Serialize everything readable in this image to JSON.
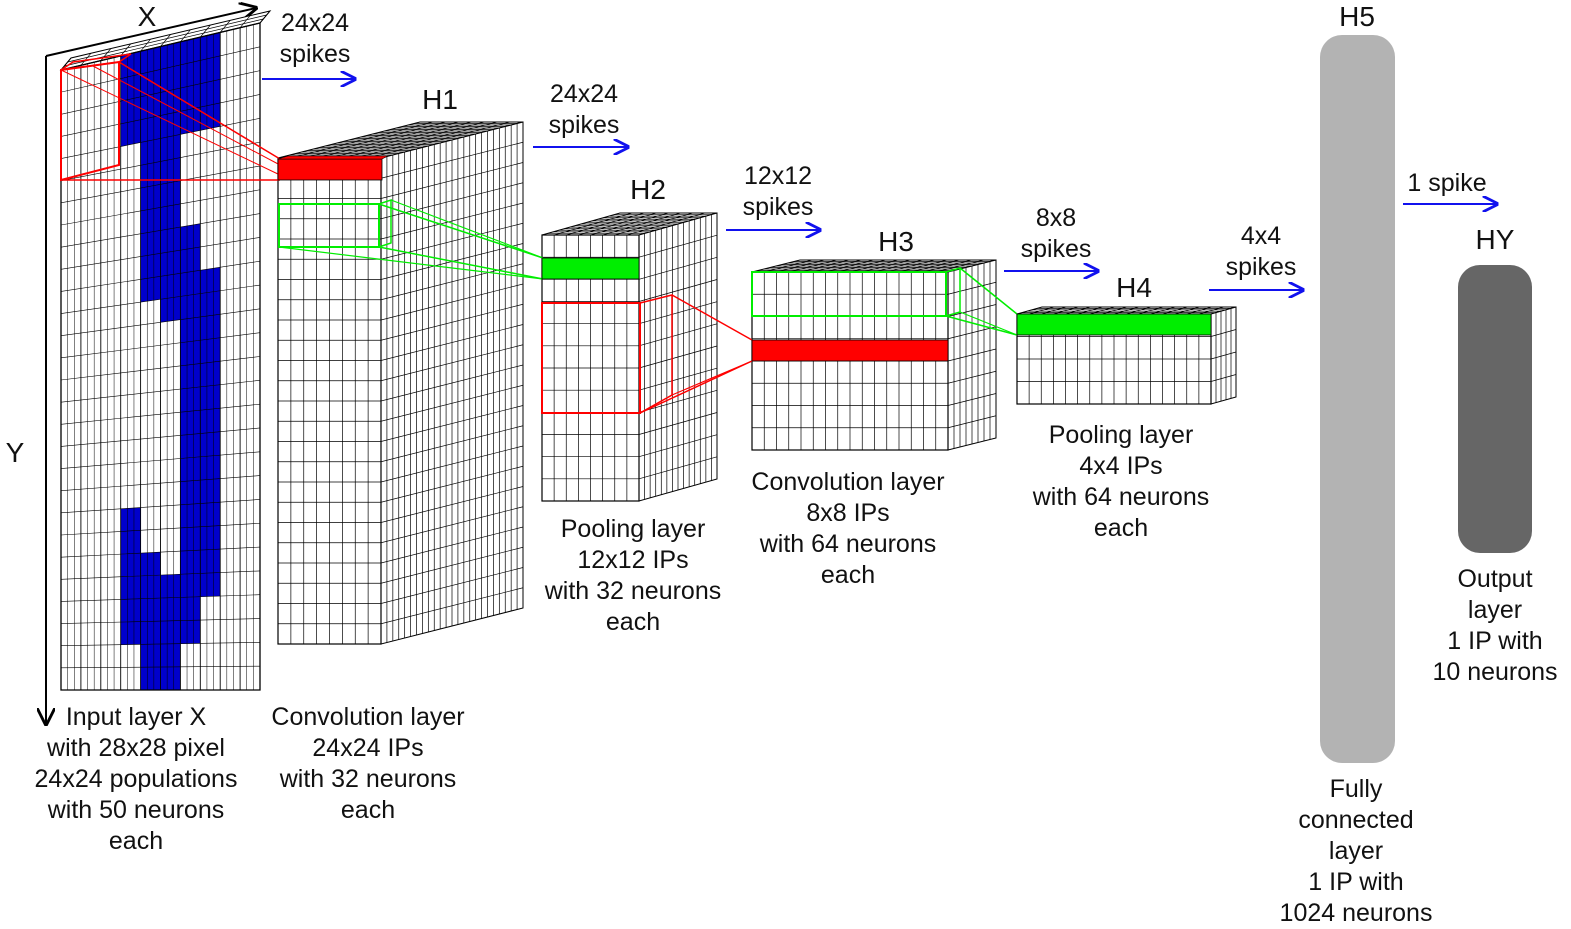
{
  "axes": {
    "x": "X",
    "y": "Y"
  },
  "layers": [
    {
      "id": "input",
      "name": "",
      "lines": [
        "Input layer X",
        "with 28x28 pixel",
        "24x24 populations",
        "with 50 neurons",
        "each"
      ]
    },
    {
      "id": "h1",
      "name": "H1",
      "lines": [
        "Convolution layer",
        "24x24 IPs",
        "with 32 neurons",
        "each"
      ]
    },
    {
      "id": "h2",
      "name": "H2",
      "lines": [
        "Pooling layer",
        "12x12 IPs",
        "with 32 neurons",
        "each"
      ]
    },
    {
      "id": "h3",
      "name": "H3",
      "lines": [
        "Convolution layer",
        "8x8 IPs",
        "with 64 neurons",
        "each"
      ]
    },
    {
      "id": "h4",
      "name": "H4",
      "lines": [
        "Pooling layer",
        "4x4 IPs",
        "with 64 neurons",
        "each"
      ]
    },
    {
      "id": "h5",
      "name": "H5",
      "lines": [
        "Fully",
        "connected",
        "layer",
        "1 IP with",
        "1024 neurons"
      ]
    },
    {
      "id": "hy",
      "name": "HY",
      "lines": [
        "Output",
        "layer",
        "1 IP with",
        "10 neurons"
      ]
    }
  ],
  "transfers": [
    {
      "from": "input",
      "to": "h1",
      "lines": [
        "24x24",
        "spikes"
      ]
    },
    {
      "from": "h1",
      "to": "h2",
      "lines": [
        "24x24",
        "spikes"
      ]
    },
    {
      "from": "h2",
      "to": "h3",
      "lines": [
        "12x12",
        "spikes"
      ]
    },
    {
      "from": "h3",
      "to": "h4",
      "lines": [
        "8x8",
        "spikes"
      ]
    },
    {
      "from": "h4",
      "to": "h5",
      "lines": [
        "4x4",
        "spikes"
      ]
    },
    {
      "from": "h5",
      "to": "hy",
      "lines": [
        "1 spike"
      ]
    }
  ],
  "colors": {
    "digit": "#0000cc",
    "kernel_red": "#ff0000",
    "kernel_green": "#00ee00",
    "arrow": "#1111ee",
    "grid_line": "#000000",
    "fully_connected": "#b3b3b3",
    "output": "#666666"
  }
}
